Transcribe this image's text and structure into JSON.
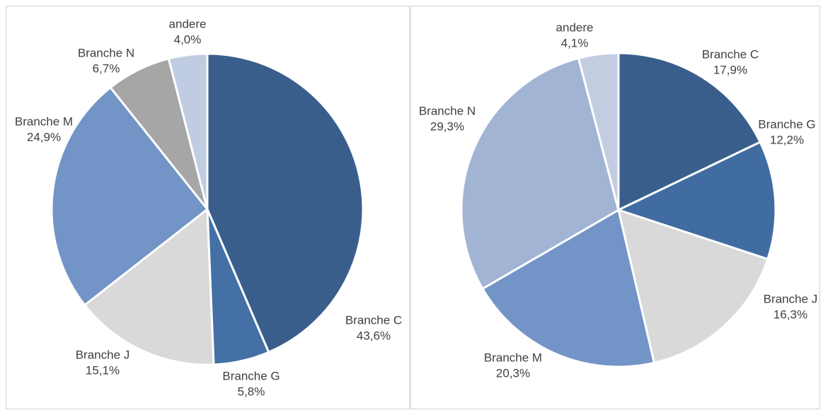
{
  "chart_data": [
    {
      "type": "pie",
      "categories": [
        "Branche C",
        "Branche G",
        "Branche J",
        "Branche M",
        "Branche N",
        "andere"
      ],
      "values": [
        43.6,
        5.8,
        15.1,
        24.9,
        6.7,
        4.0
      ],
      "value_labels": [
        "43,6%",
        "5,8%",
        "15,1%",
        "24,9%",
        "6,7%",
        "4,0%"
      ],
      "colors": [
        "#3a5e8c",
        "#4470a6",
        "#d9d9d9",
        "#7394c6",
        "#a6a6a6",
        "#c0cce2"
      ]
    },
    {
      "type": "pie",
      "categories": [
        "Branche C",
        "Branche G",
        "Branche J",
        "Branche M",
        "Branche N",
        "andere"
      ],
      "values": [
        17.9,
        12.2,
        16.3,
        20.3,
        29.3,
        4.1
      ],
      "value_labels": [
        "17,9%",
        "12,2%",
        "16,3%",
        "20,3%",
        "29,3%",
        "4,1%"
      ],
      "colors": [
        "#3a5e8c",
        "#416ca2",
        "#d9d9d9",
        "#7394c6",
        "#a1b4d4",
        "#c3cde2"
      ]
    }
  ]
}
